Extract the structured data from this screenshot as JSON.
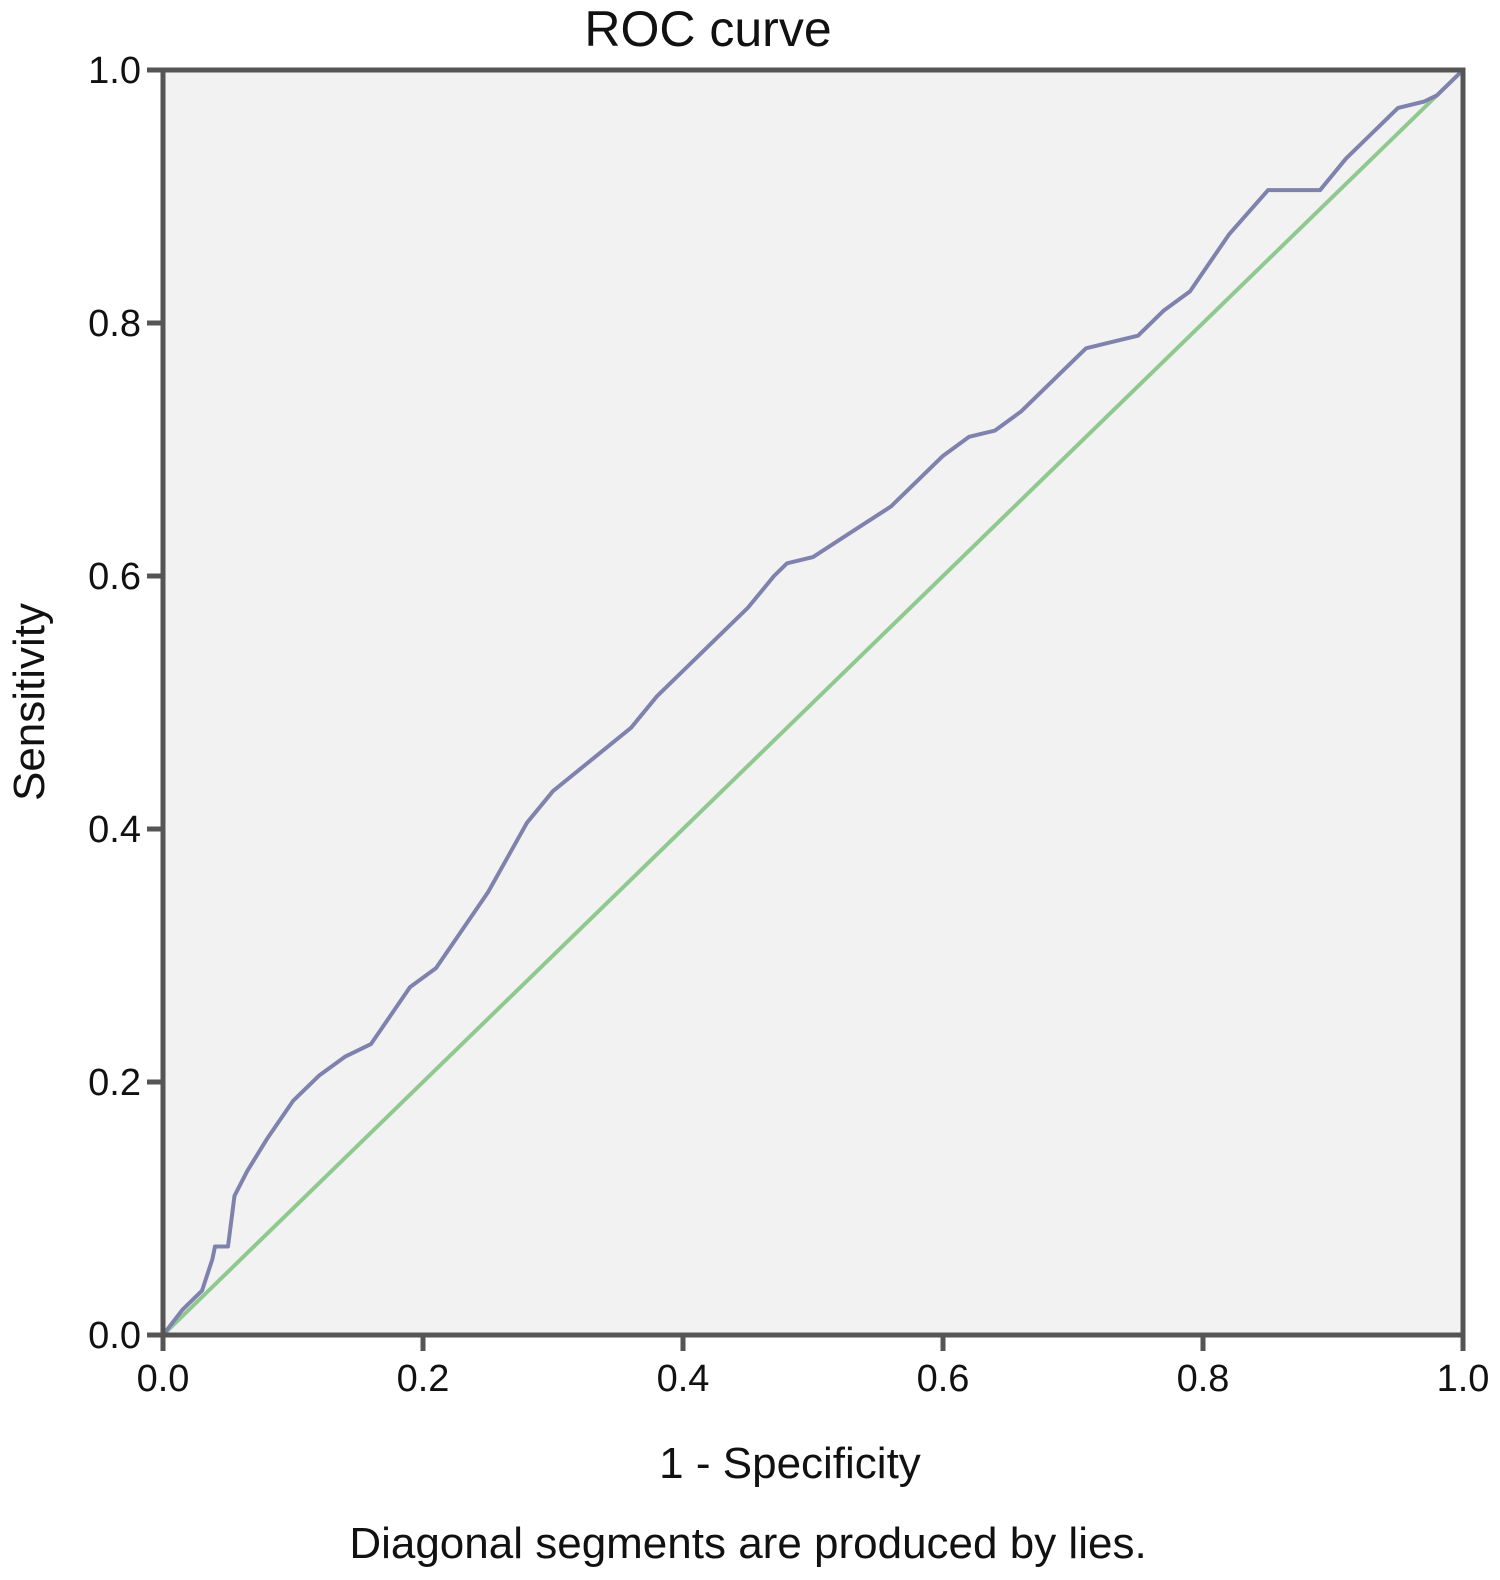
{
  "chart_data": {
    "type": "line",
    "title": "ROC curve",
    "xlabel": "1 - Specificity",
    "ylabel": "Sensitivity",
    "footnote": "Diagonal segments are produced by lies.",
    "xlim": [
      0,
      1
    ],
    "ylim": [
      0,
      1
    ],
    "xticks": [
      "0.0",
      "0.2",
      "0.4",
      "0.6",
      "0.8",
      "1.0"
    ],
    "yticks": [
      "0.0",
      "0.2",
      "0.4",
      "0.6",
      "0.8",
      "1.0"
    ],
    "grid": false,
    "legend": "none",
    "colors": {
      "plot_background": "#f3f2f2",
      "frame": "#555555",
      "curve": "#7f82ad",
      "reference_line": "#8fc98f"
    },
    "series": [
      {
        "x": [
          0.0,
          0.015,
          0.03,
          0.038,
          0.04,
          0.05,
          0.055,
          0.065,
          0.08,
          0.1,
          0.12,
          0.14,
          0.16,
          0.19,
          0.21,
          0.25,
          0.28,
          0.3,
          0.33,
          0.36,
          0.38,
          0.4,
          0.42,
          0.45,
          0.47,
          0.48,
          0.5,
          0.53,
          0.56,
          0.6,
          0.62,
          0.64,
          0.66,
          0.69,
          0.71,
          0.73,
          0.75,
          0.77,
          0.79,
          0.8,
          0.82,
          0.85,
          0.89,
          0.91,
          0.93,
          0.95,
          0.97,
          0.98,
          1.0
        ],
        "y": [
          0.0,
          0.02,
          0.035,
          0.06,
          0.07,
          0.07,
          0.11,
          0.13,
          0.155,
          0.185,
          0.205,
          0.22,
          0.23,
          0.275,
          0.29,
          0.35,
          0.405,
          0.43,
          0.455,
          0.48,
          0.505,
          0.525,
          0.545,
          0.575,
          0.6,
          0.61,
          0.615,
          0.635,
          0.655,
          0.695,
          0.71,
          0.715,
          0.73,
          0.76,
          0.78,
          0.785,
          0.79,
          0.81,
          0.825,
          0.84,
          0.87,
          0.905,
          0.905,
          0.93,
          0.95,
          0.97,
          0.975,
          0.98,
          1.0
        ]
      },
      {
        "x": [
          0.0,
          1.0
        ],
        "y": [
          0.0,
          1.0
        ]
      }
    ]
  }
}
